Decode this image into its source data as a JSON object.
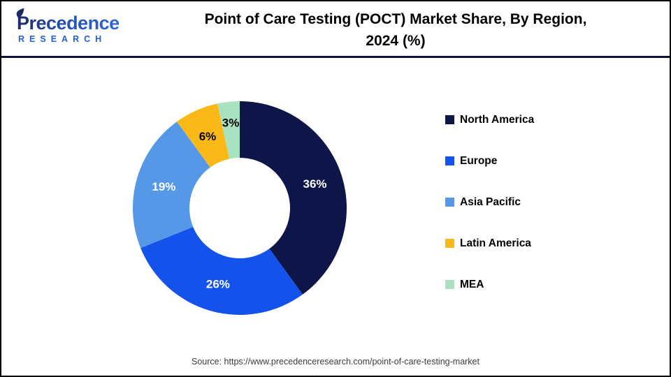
{
  "header": {
    "logo": {
      "line1": "Precedence",
      "line2": "RESEARCH"
    },
    "title_line1": "Point of Care Testing (POCT) Market Share, By Region,",
    "title_line2": "2024 (%)"
  },
  "chart_data": {
    "type": "pie",
    "subtype": "donut",
    "title": "Point of Care Testing (POCT) Market Share, By Region, 2024 (%)",
    "start_angle_deg": 0,
    "direction": "clockwise",
    "categories": [
      "North America",
      "Europe",
      "Asia Pacific",
      "Latin America",
      "MEA"
    ],
    "values": [
      36,
      26,
      19,
      6,
      3
    ],
    "unit": "%",
    "data_labels": [
      "36%",
      "26%",
      "19%",
      "6%",
      "3%"
    ],
    "colors": [
      "#0e1549",
      "#1353ec",
      "#5598e8",
      "#fbb917",
      "#a9e2c1"
    ],
    "label_colors": [
      "#ffffff",
      "#ffffff",
      "#ffffff",
      "#000000",
      "#000000"
    ],
    "legend_position": "right"
  },
  "footer": {
    "source": "Source: https://www.precedenceresearch.com/point-of-care-testing-market"
  }
}
